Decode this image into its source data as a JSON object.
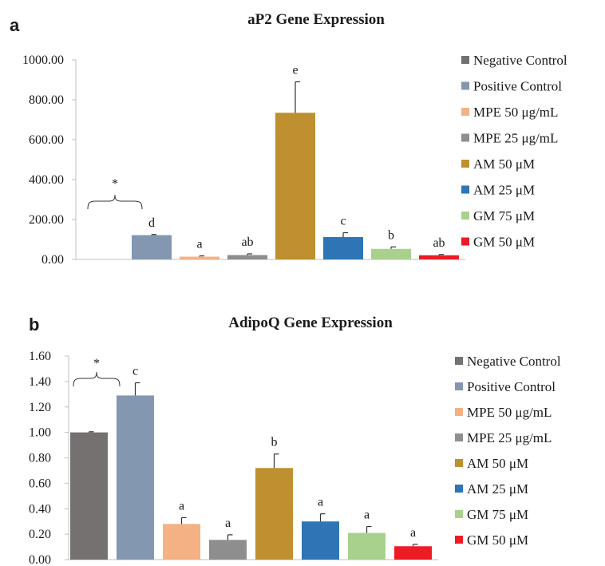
{
  "chart_data": [
    {
      "type": "bar",
      "panel_label": "a",
      "title": "aP2 Gene Expression",
      "categories": [
        "Negative Control",
        "Positive Control",
        "MPE 50 μg/mL",
        "MPE 25 μg/mL",
        "AM 50 μM",
        "AM 25 μM",
        "GM 75 μM",
        "GM 50 μM"
      ],
      "values": [
        0,
        122,
        14,
        22,
        735,
        112,
        53,
        21
      ],
      "errors": [
        0,
        3,
        4,
        6,
        155,
        22,
        10,
        4
      ],
      "significance_letters": [
        "",
        "d",
        "a",
        "ab",
        "e",
        "c",
        "b",
        "ab"
      ],
      "bracket_label": "*",
      "yticks": [
        "0.00",
        "200.00",
        "400.00",
        "600.00",
        "800.00",
        "1000.00"
      ],
      "ylim": [
        0,
        1000
      ],
      "legend_position": "right",
      "colors": [
        "#767171",
        "#8497b0",
        "#f4b183",
        "#8e8e8e",
        "#bf9030",
        "#2e75b6",
        "#a9d18e",
        "#ed1c24"
      ]
    },
    {
      "type": "bar",
      "panel_label": "b",
      "title": "AdipoQ Gene Expression",
      "categories": [
        "Negative Control",
        "Positive Control",
        "MPE 50 μg/mL",
        "MPE 25 μg/mL",
        "AM 50 μM",
        "AM 25 μM",
        "GM 75 μM",
        "GM 50 μM"
      ],
      "values": [
        1.0,
        1.29,
        0.28,
        0.155,
        0.72,
        0.3,
        0.21,
        0.105
      ],
      "errors": [
        0.005,
        0.1,
        0.05,
        0.04,
        0.11,
        0.06,
        0.05,
        0.015
      ],
      "significance_letters": [
        "",
        "c",
        "a",
        "a",
        "b",
        "a",
        "a",
        "a"
      ],
      "bracket_label": "*",
      "yticks": [
        "0.00",
        "0.20",
        "0.40",
        "0.60",
        "0.80",
        "1.00",
        "1.20",
        "1.40",
        "1.60"
      ],
      "ylim": [
        0,
        1.6
      ],
      "legend_position": "right",
      "colors": [
        "#767171",
        "#8497b0",
        "#f4b183",
        "#8e8e8e",
        "#bf9030",
        "#2e75b6",
        "#a9d18e",
        "#ed1c24"
      ]
    }
  ]
}
